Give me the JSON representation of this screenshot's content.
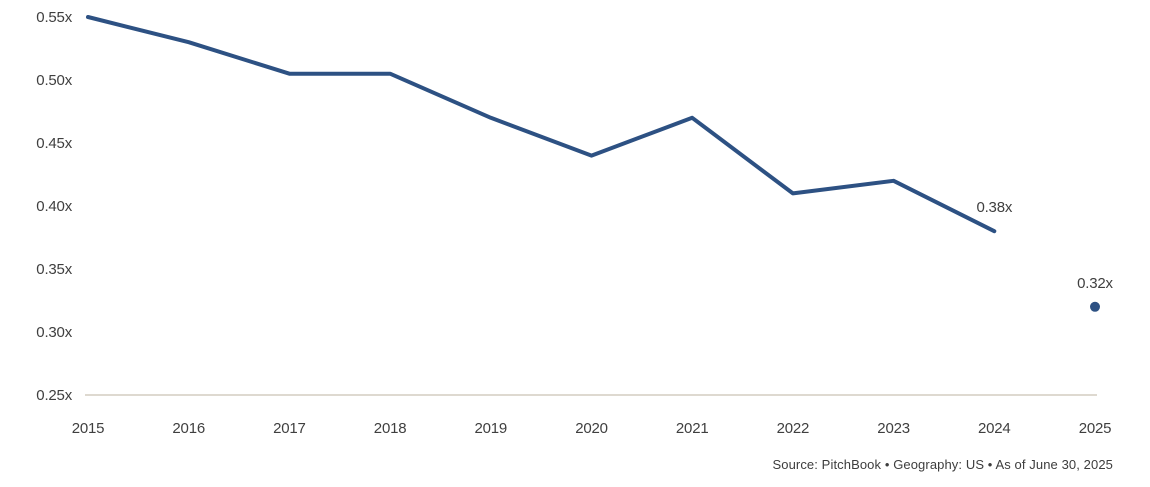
{
  "chart_data": {
    "type": "line",
    "title": "",
    "xlabel": "",
    "ylabel": "",
    "xlim": [
      2015,
      2025
    ],
    "ylim": [
      0.25,
      0.55
    ],
    "grid": false,
    "legend": "none",
    "x_ticks": [
      {
        "value": 2015,
        "label": "2015"
      },
      {
        "value": 2016,
        "label": "2016"
      },
      {
        "value": 2017,
        "label": "2017"
      },
      {
        "value": 2018,
        "label": "2018"
      },
      {
        "value": 2019,
        "label": "2019"
      },
      {
        "value": 2020,
        "label": "2020"
      },
      {
        "value": 2021,
        "label": "2021"
      },
      {
        "value": 2022,
        "label": "2022"
      },
      {
        "value": 2023,
        "label": "2023"
      },
      {
        "value": 2024,
        "label": "2024"
      },
      {
        "value": 2025,
        "label": "2025"
      }
    ],
    "y_ticks": [
      {
        "value": 0.55,
        "label": "0.55x"
      },
      {
        "value": 0.5,
        "label": "0.50x"
      },
      {
        "value": 0.45,
        "label": "0.45x"
      },
      {
        "value": 0.4,
        "label": "0.40x"
      },
      {
        "value": 0.35,
        "label": "0.35x"
      },
      {
        "value": 0.3,
        "label": "0.30x"
      },
      {
        "value": 0.25,
        "label": "0.25x"
      }
    ],
    "series": [
      {
        "name": "annual-multiple-2015-2024",
        "draw": "line",
        "x": [
          2015,
          2016,
          2017,
          2018,
          2019,
          2020,
          2021,
          2022,
          2023,
          2024
        ],
        "values": [
          0.55,
          0.53,
          0.505,
          0.505,
          0.47,
          0.44,
          0.47,
          0.41,
          0.42,
          0.38
        ]
      },
      {
        "name": "2025-year-to-date-point",
        "draw": "point",
        "x": [
          2025
        ],
        "values": [
          0.32
        ]
      }
    ],
    "annotations": [
      {
        "x": 2024,
        "value": 0.38,
        "label": "0.38x"
      },
      {
        "x": 2025,
        "value": 0.32,
        "label": "0.32x"
      }
    ],
    "colors": {
      "line": "#2d5183",
      "point": "#2d5183",
      "axis_line": "#c9c2b5",
      "tick_text": "#3f3f3f",
      "annotation_text": "#3f3f3f"
    }
  },
  "footer": {
    "source_text": "Source: PitchBook • Geography: US • As of June 30, 2025"
  }
}
